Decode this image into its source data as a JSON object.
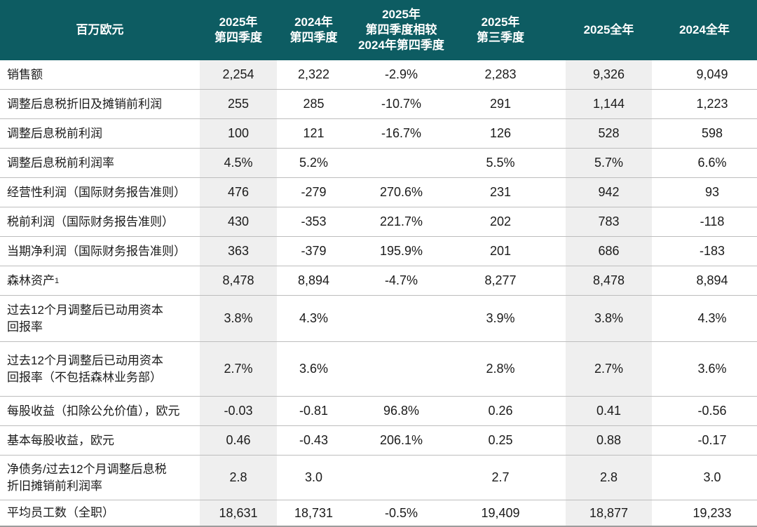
{
  "table": {
    "unit_label": "百万欧元",
    "colors": {
      "header_bg": "#0d5c62",
      "header_text": "#ffffff",
      "highlight_column_bg": "#efefef",
      "row_divider": "#bdbdbd",
      "bottom_border": "#9c9c9c",
      "body_text": "#1b1b1b"
    },
    "columns": [
      {
        "label": "2025年\n第四季度",
        "highlight": true
      },
      {
        "label": "2024年\n第四季度",
        "highlight": false
      },
      {
        "label": "2025年\n第四季度相较\n2024年第四季度",
        "highlight": false
      },
      {
        "label": "2025年\n第三季度",
        "highlight": false
      },
      {
        "label": "2025全年",
        "highlight": true
      },
      {
        "label": "2024全年",
        "highlight": false
      }
    ],
    "rows": [
      {
        "label": "销售额",
        "values": [
          "2,254",
          "2,322",
          "-2.9%",
          "2,283",
          "9,326",
          "9,049"
        ]
      },
      {
        "label": "调整后息税折旧及摊销前利润",
        "values": [
          "255",
          "285",
          "-10.7%",
          "291",
          "1,144",
          "1,223"
        ]
      },
      {
        "label": "调整后息税前利润",
        "values": [
          "100",
          "121",
          "-16.7%",
          "126",
          "528",
          "598"
        ]
      },
      {
        "label": "调整后息税前利润率",
        "values": [
          "4.5%",
          "5.2%",
          "",
          "5.5%",
          "5.7%",
          "6.6%"
        ]
      },
      {
        "label": "经营性利润（国际财务报告准则）",
        "values": [
          "476",
          "-279",
          "270.6%",
          "231",
          "942",
          "93"
        ]
      },
      {
        "label": "税前利润（国际财务报告准则）",
        "values": [
          "430",
          "-353",
          "221.7%",
          "202",
          "783",
          "-118"
        ]
      },
      {
        "label": "当期净利润（国际财务报告准则）",
        "values": [
          "363",
          "-379",
          "195.9%",
          "201",
          "686",
          "-183"
        ]
      },
      {
        "label": "森林资产¹",
        "values": [
          "8,478",
          "8,894",
          "-4.7%",
          "8,277",
          "8,478",
          "8,894"
        ]
      },
      {
        "label": "过去12个月调整后已动用资本\n回报率",
        "values": [
          "3.8%",
          "4.3%",
          "",
          "3.9%",
          "3.8%",
          "4.3%"
        ]
      },
      {
        "label": "过去12个月调整后已动用资本\n回报率（不包括森林业务部）",
        "values": [
          "2.7%",
          "3.6%",
          "",
          "2.8%",
          "2.7%",
          "3.6%"
        ]
      },
      {
        "label": "每股收益（扣除公允价值），欧元",
        "values": [
          "-0.03",
          "-0.81",
          "96.8%",
          "0.26",
          "0.41",
          "-0.56"
        ]
      },
      {
        "label": "基本每股收益，欧元",
        "values": [
          "0.46",
          "-0.43",
          "206.1%",
          "0.25",
          "0.88",
          "-0.17"
        ]
      },
      {
        "label": "净债务/过去12个月调整后息税\n折旧摊销前利润率",
        "values": [
          "2.8",
          "3.0",
          "",
          "2.7",
          "2.8",
          "3.0"
        ]
      },
      {
        "label": "平均员工数（全职）",
        "values": [
          "18,631",
          "18,731",
          "-0.5%",
          "19,409",
          "18,877",
          "19,233"
        ]
      }
    ]
  }
}
